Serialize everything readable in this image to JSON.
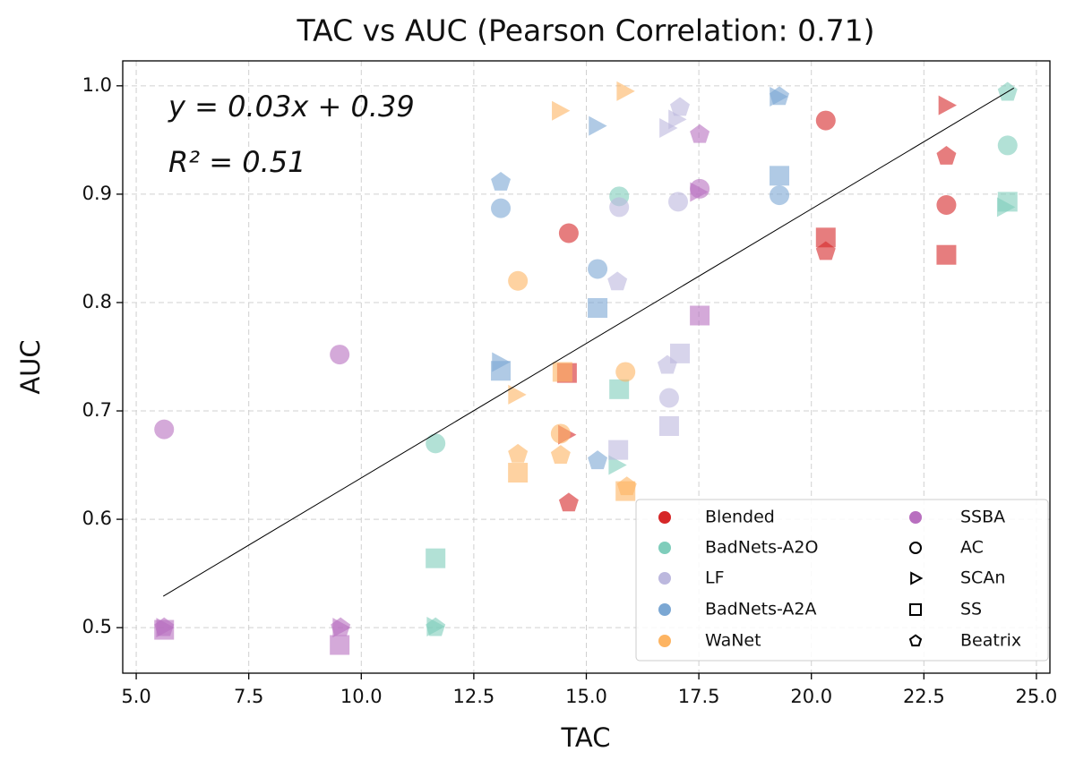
{
  "chart_data": {
    "type": "scatter",
    "title": "TAC vs AUC (Pearson Correlation: 0.71)",
    "x_label": "TAC",
    "y_label": "AUC",
    "annotations": [
      "y = 0.03x + 0.39",
      "R² = 0.51"
    ],
    "xlim": [
      4.7,
      25.3
    ],
    "ylim": [
      0.458,
      1.023
    ],
    "xticks": [
      {
        "value": 5,
        "label": "5.0"
      },
      7.5,
      {
        "value": 10,
        "label": "10.0"
      },
      12.5,
      {
        "value": 15,
        "label": "15.0"
      },
      17.5,
      {
        "value": 20,
        "label": "20.0"
      },
      22.5,
      {
        "value": 25,
        "label": "25.0"
      }
    ],
    "yticks": [
      0.5,
      0.6,
      0.7,
      0.8,
      0.9,
      {
        "value": 1,
        "label": "1.0"
      }
    ],
    "grid": true,
    "legend": "lower right",
    "fit_line": {
      "color": "#000000",
      "x": [
        5.6,
        24.5
      ],
      "y": [
        0.529,
        0.998
      ]
    },
    "methods": [
      {
        "name": "AC",
        "marker": "circle"
      },
      {
        "name": "SCAn",
        "marker": "triangle"
      },
      {
        "name": "SS",
        "marker": "square"
      },
      {
        "name": "Beatrix",
        "marker": "pentagon"
      }
    ],
    "series": [
      {
        "name": "Blended",
        "color": "#d62728",
        "x": [
          20.32,
          23.0,
          14.61,
          23.0,
          20.32,
          14.61,
          23.0,
          14.55,
          20.32,
          23.0,
          14.57
        ],
        "y": [
          0.968,
          0.89,
          0.864,
          0.935,
          0.847,
          0.615,
          0.982,
          0.678,
          0.86,
          0.844,
          0.735
        ],
        "markers": [
          "AC",
          "AC",
          "AC",
          "Beatrix",
          "Beatrix",
          "Beatrix",
          "SCAn",
          "SCAn",
          "SS",
          "SS",
          "SS"
        ]
      },
      {
        "name": "BadNets-A2O",
        "color": "#7fcdbb",
        "x": [
          24.36,
          15.73,
          11.65,
          24.36,
          11.65,
          24.3,
          15.67,
          11.63,
          24.36,
          15.73,
          11.65
        ],
        "y": [
          0.945,
          0.898,
          0.67,
          0.994,
          0.5,
          0.888,
          0.65,
          0.501,
          0.893,
          0.72,
          0.564
        ],
        "markers": [
          "AC",
          "AC",
          "AC",
          "Beatrix",
          "Beatrix",
          "SCAn",
          "SCAn",
          "SCAn",
          "SS",
          "SS",
          "SS"
        ]
      },
      {
        "name": "LF",
        "color": "#bcb8de",
        "x": [
          15.73,
          17.04,
          16.84,
          16.8,
          17.0,
          17.08,
          15.69,
          16.8,
          17.08,
          16.84,
          15.71
        ],
        "y": [
          0.888,
          0.893,
          0.712,
          0.961,
          0.969,
          0.98,
          0.819,
          0.742,
          0.753,
          0.686,
          0.664
        ],
        "markers": [
          "AC",
          "AC",
          "AC",
          "SCAn",
          "SCAn",
          "Beatrix",
          "Beatrix",
          "Beatrix",
          "SS",
          "SS",
          "SS"
        ]
      },
      {
        "name": "BadNets-A2A",
        "color": "#7ba7d3",
        "x": [
          19.29,
          13.1,
          15.25,
          19.25,
          15.23,
          13.08,
          19.29,
          13.1,
          15.25,
          19.29,
          15.25,
          13.1
        ],
        "y": [
          0.899,
          0.887,
          0.831,
          0.99,
          0.963,
          0.745,
          0.99,
          0.911,
          0.654,
          0.917,
          0.795,
          0.737
        ],
        "markers": [
          "AC",
          "AC",
          "AC",
          "SCAn",
          "SCAn",
          "SCAn",
          "Beatrix",
          "Beatrix",
          "Beatrix",
          "SS",
          "SS",
          "SS"
        ]
      },
      {
        "name": "WaNet",
        "color": "#fdb462",
        "x": [
          13.48,
          15.87,
          14.43,
          15.85,
          14.41,
          13.44,
          13.48,
          14.43,
          15.9,
          14.47,
          13.48,
          15.87
        ],
        "y": [
          0.82,
          0.736,
          0.679,
          0.995,
          0.977,
          0.715,
          0.66,
          0.659,
          0.63,
          0.736,
          0.643,
          0.626
        ],
        "markers": [
          "AC",
          "AC",
          "AC",
          "SCAn",
          "SCAn",
          "SCAn",
          "Beatrix",
          "Beatrix",
          "Beatrix",
          "SS",
          "SS",
          "SS"
        ]
      },
      {
        "name": "SSBA",
        "color": "#b86fbf",
        "x": [
          9.52,
          5.62,
          17.52,
          17.48,
          5.62,
          9.54,
          17.52,
          5.62,
          9.54,
          17.52,
          5.62,
          9.52
        ],
        "y": [
          0.752,
          0.683,
          0.905,
          0.902,
          0.5,
          0.5,
          0.955,
          0.5,
          0.5,
          0.788,
          0.498,
          0.484
        ],
        "markers": [
          "AC",
          "AC",
          "AC",
          "SCAn",
          "SCAn",
          "SCAn",
          "Beatrix",
          "Beatrix",
          "Beatrix",
          "SS",
          "SS",
          "SS"
        ]
      }
    ]
  }
}
